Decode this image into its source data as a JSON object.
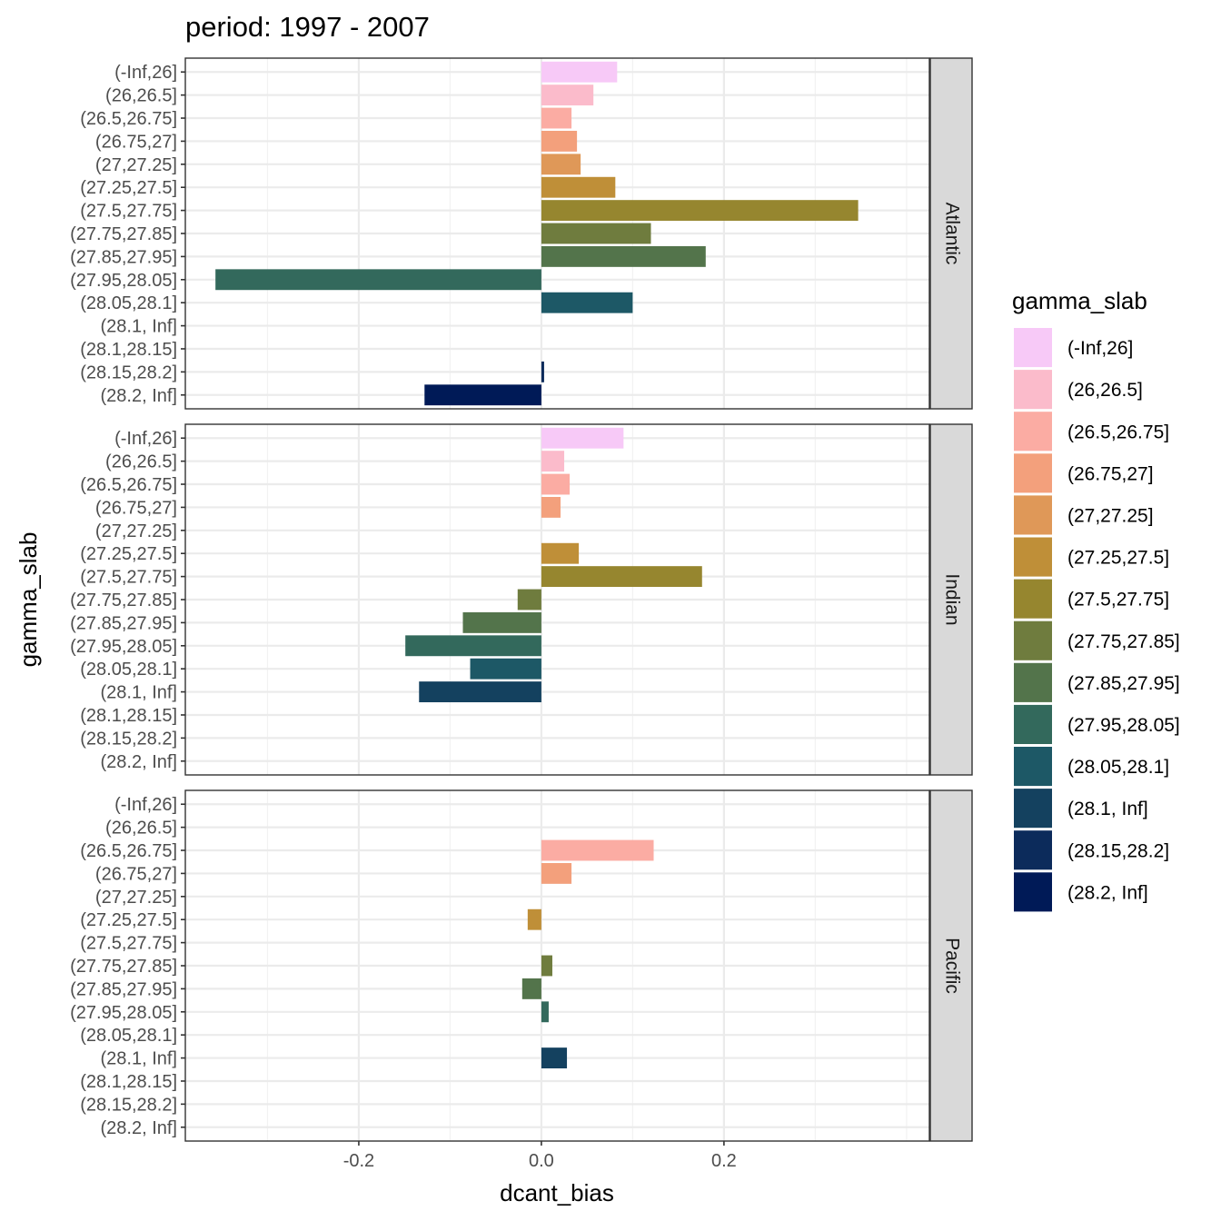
{
  "chart_data": {
    "type": "bar",
    "orientation": "horizontal",
    "title": "period: 1997 - 2007",
    "xlabel": "dcant_bias",
    "ylabel": "gamma_slab",
    "xlim": [
      -0.39,
      0.425
    ],
    "x_ticks": [
      -0.2,
      0.0,
      0.2
    ],
    "x_tick_labels": [
      "-0.2",
      "0.0",
      "0.2"
    ],
    "grid": true,
    "legend_position": "right",
    "legend_title": "gamma_slab",
    "categories": [
      "(-Inf,26]",
      "(26,26.5]",
      "(26.5,26.75]",
      "(26.75,27]",
      "(27,27.25]",
      "(27.25,27.5]",
      "(27.5,27.75]",
      "(27.75,27.85]",
      "(27.85,27.95]",
      "(27.95,28.05]",
      "(28.05,28.1]",
      "(28.1, Inf]",
      "(28.1,28.15]",
      "(28.15,28.2]",
      "(28.2, Inf]"
    ],
    "legend_entries": [
      "(-Inf,26]",
      "(26,26.5]",
      "(26.5,26.75]",
      "(26.75,27]",
      "(27,27.25]",
      "(27.25,27.5]",
      "(27.5,27.75]",
      "(27.75,27.85]",
      "(27.85,27.95]",
      "(27.95,28.05]",
      "(28.05,28.1]",
      "(28.1, Inf]",
      "(28.15,28.2]",
      "(28.2, Inf]"
    ],
    "colors": {
      "(-Inf,26]": "#f7c9f7",
      "(26,26.5]": "#fbbbcb",
      "(26.5,26.75]": "#fbaca3",
      "(26.75,27]": "#f3a07c",
      "(27,27.25]": "#df9858",
      "(27.25,27.5]": "#bf8f38",
      "(27.5,27.75]": "#96862f",
      "(27.75,27.85]": "#6f7c3e",
      "(27.85,27.95]": "#53744b",
      "(27.95,28.05]": "#33695c",
      "(28.05,28.1]": "#1d5866",
      "(28.1, Inf]": "#14415f",
      "(28.15,28.2]": "#0c2b5b",
      "(28.2, Inf]": "#001a57"
    },
    "panels": [
      {
        "name": "Atlantic",
        "values": {
          "(-Inf,26]": 0.083,
          "(26,26.5]": 0.057,
          "(26.5,26.75]": 0.033,
          "(26.75,27]": 0.039,
          "(27,27.25]": 0.043,
          "(27.25,27.5]": 0.081,
          "(27.5,27.75]": 0.347,
          "(27.75,27.85]": 0.12,
          "(27.85,27.95]": 0.18,
          "(27.95,28.05]": -0.357,
          "(28.05,28.1]": 0.1,
          "(28.15,28.2]": 0.003,
          "(28.2, Inf]": -0.128
        }
      },
      {
        "name": "Indian",
        "values": {
          "(-Inf,26]": 0.09,
          "(26,26.5]": 0.025,
          "(26.5,26.75]": 0.031,
          "(26.75,27]": 0.021,
          "(27.25,27.5]": 0.041,
          "(27.5,27.75]": 0.176,
          "(27.75,27.85]": -0.026,
          "(27.85,27.95]": -0.086,
          "(27.95,28.05]": -0.149,
          "(28.05,28.1]": -0.078,
          "(28.1, Inf]": -0.134
        }
      },
      {
        "name": "Pacific",
        "values": {
          "(26.5,26.75]": 0.123,
          "(26.75,27]": 0.033,
          "(27.25,27.5]": -0.015,
          "(27.75,27.85]": 0.012,
          "(27.85,27.95]": -0.021,
          "(27.95,28.05]": 0.008,
          "(28.1, Inf]": 0.028
        }
      }
    ]
  }
}
